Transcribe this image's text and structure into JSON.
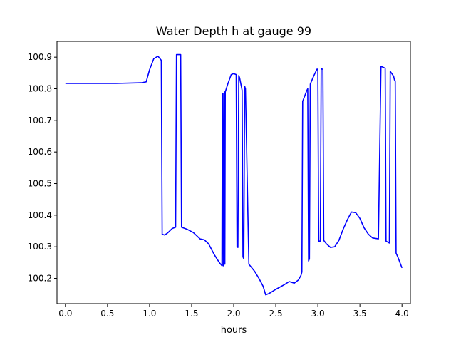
{
  "chart_data": {
    "type": "line",
    "title": "Water Depth h at gauge 99",
    "xlabel": "hours",
    "ylabel": "",
    "xlim": [
      -0.1,
      4.1
    ],
    "ylim": [
      100.12,
      100.95
    ],
    "x_ticks": [
      0.0,
      0.5,
      1.0,
      1.5,
      2.0,
      2.5,
      3.0,
      3.5,
      4.0
    ],
    "x_tick_labels": [
      "0.0",
      "0.5",
      "1.0",
      "1.5",
      "2.0",
      "2.5",
      "3.0",
      "3.5",
      "4.0"
    ],
    "y_ticks": [
      100.2,
      100.3,
      100.4,
      100.5,
      100.6,
      100.7,
      100.8,
      100.9
    ],
    "y_tick_labels": [
      "100.2",
      "100.3",
      "100.4",
      "100.5",
      "100.6",
      "100.7",
      "100.8",
      "100.9"
    ],
    "grid": false,
    "legend": "none",
    "series": [
      {
        "color": "#0000ff",
        "x": [
          0.0,
          0.3,
          0.6,
          0.9,
          0.96,
          1.0,
          1.05,
          1.1,
          1.14,
          1.15,
          1.18,
          1.22,
          1.27,
          1.31,
          1.32,
          1.37,
          1.38,
          1.45,
          1.52,
          1.6,
          1.65,
          1.7,
          1.77,
          1.83,
          1.86,
          1.865,
          1.87,
          1.875,
          1.88,
          1.885,
          1.89,
          1.895,
          1.9,
          1.93,
          1.97,
          2.0,
          2.03,
          2.04,
          2.05,
          2.06,
          2.07,
          2.1,
          2.11,
          2.12,
          2.13,
          2.14,
          2.18,
          2.25,
          2.3,
          2.35,
          2.38,
          2.42,
          2.5,
          2.6,
          2.66,
          2.72,
          2.77,
          2.8,
          2.81,
          2.82,
          2.87,
          2.88,
          2.89,
          2.9,
          2.91,
          2.95,
          2.99,
          3.0,
          3.01,
          3.03,
          3.04,
          3.05,
          3.06,
          3.07,
          3.1,
          3.15,
          3.2,
          3.25,
          3.3,
          3.35,
          3.4,
          3.45,
          3.5,
          3.55,
          3.6,
          3.65,
          3.72,
          3.75,
          3.76,
          3.8,
          3.81,
          3.85,
          3.86,
          3.9,
          3.91,
          3.92,
          3.93,
          3.95,
          4.0
        ],
        "y": [
          100.817,
          100.817,
          100.817,
          100.819,
          100.822,
          100.86,
          100.895,
          100.903,
          100.89,
          100.34,
          100.337,
          100.345,
          100.358,
          100.362,
          100.908,
          100.908,
          100.362,
          100.355,
          100.345,
          100.325,
          100.322,
          100.31,
          100.275,
          100.25,
          100.24,
          100.785,
          100.785,
          100.24,
          100.24,
          100.785,
          100.79,
          100.245,
          100.79,
          100.815,
          100.845,
          100.848,
          100.845,
          100.3,
          100.298,
          100.842,
          100.835,
          100.795,
          100.268,
          100.262,
          100.808,
          100.8,
          100.245,
          100.222,
          100.2,
          100.175,
          100.148,
          100.152,
          100.165,
          100.18,
          100.19,
          100.185,
          100.195,
          100.21,
          100.22,
          100.76,
          100.795,
          100.8,
          100.255,
          100.262,
          100.815,
          100.84,
          100.862,
          100.862,
          100.318,
          100.318,
          100.865,
          100.862,
          100.862,
          100.32,
          100.31,
          100.298,
          100.3,
          100.32,
          100.355,
          100.385,
          100.41,
          100.408,
          100.39,
          100.36,
          100.34,
          100.328,
          100.325,
          100.87,
          100.87,
          100.865,
          100.318,
          100.312,
          100.855,
          100.84,
          100.828,
          100.825,
          100.28,
          100.268,
          100.233
        ]
      }
    ]
  }
}
